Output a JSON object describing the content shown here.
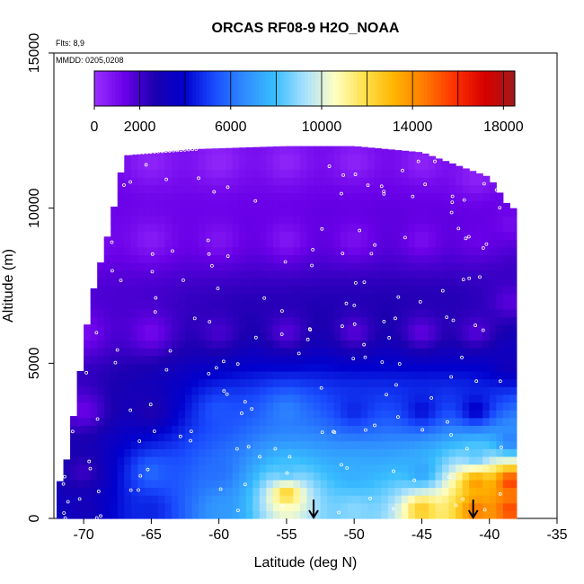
{
  "chart_data": {
    "type": "heatmap",
    "title": "ORCAS RF08-9 H2O_NOAA",
    "xlabel": "Latitude (deg N)",
    "ylabel": "Altitude (m)",
    "note_flights": "Flts: 8,9",
    "note_dates": "MMDD: 0205,0208",
    "xlim": [
      -72.2,
      -35
    ],
    "ylim": [
      0,
      15000
    ],
    "x_ticks": [
      -70,
      -65,
      -60,
      -55,
      -50,
      -45,
      -40,
      -35
    ],
    "y_ticks": [
      0,
      5000,
      10000,
      15000
    ],
    "colorbar": {
      "range": [
        0,
        18500
      ],
      "tick_values": [
        0,
        2000,
        6000,
        10000,
        14000,
        18000
      ],
      "colors": [
        "#9b30ff",
        "#6a00e8",
        "#1c00b0",
        "#0000cd",
        "#1a4cff",
        "#2f8cff",
        "#38bdff",
        "#a6e0ff",
        "#ffffc4",
        "#ffe14a",
        "#ffb300",
        "#ff7a00",
        "#ff3000",
        "#d60000",
        "#a31a1a"
      ]
    },
    "field": {
      "lat_range": [
        -72,
        -38
      ],
      "alt_range": [
        0,
        12000
      ],
      "top_edge_alt": [
        [
          -71.5,
          1200
        ],
        [
          -70.5,
          4000
        ],
        [
          -69.5,
          7000
        ],
        [
          -68,
          9500
        ],
        [
          -67,
          11700
        ],
        [
          -62,
          11900
        ],
        [
          -55,
          12000
        ],
        [
          -50,
          12000
        ],
        [
          -45,
          11800
        ],
        [
          -40,
          11000
        ],
        [
          -38.5,
          10000
        ]
      ],
      "anchors": [
        [
          -70,
          300,
          3000
        ],
        [
          -70,
          1500,
          2000
        ],
        [
          -70,
          3500,
          1200
        ],
        [
          -70,
          6000,
          900
        ],
        [
          -70,
          9000,
          500
        ],
        [
          -65,
          300,
          4500
        ],
        [
          -65,
          1500,
          6000
        ],
        [
          -65,
          3500,
          2500
        ],
        [
          -65,
          6000,
          1000
        ],
        [
          -65,
          9000,
          500
        ],
        [
          -65,
          11500,
          300
        ],
        [
          -60,
          300,
          7000
        ],
        [
          -60,
          1500,
          6000
        ],
        [
          -60,
          3500,
          5500
        ],
        [
          -60,
          6000,
          1800
        ],
        [
          -60,
          9000,
          700
        ],
        [
          -60,
          11500,
          200
        ],
        [
          -55,
          300,
          10500
        ],
        [
          -55,
          800,
          13500
        ],
        [
          -55,
          1500,
          8000
        ],
        [
          -55,
          3500,
          6500
        ],
        [
          -55,
          6000,
          1500
        ],
        [
          -55,
          9000,
          600
        ],
        [
          -55,
          11500,
          250
        ],
        [
          -50,
          300,
          9000
        ],
        [
          -50,
          1500,
          7500
        ],
        [
          -50,
          3500,
          4500
        ],
        [
          -50,
          6000,
          1500
        ],
        [
          -50,
          9000,
          800
        ],
        [
          -50,
          11500,
          300
        ],
        [
          -45,
          300,
          13000
        ],
        [
          -45,
          1500,
          7000
        ],
        [
          -45,
          3500,
          4000
        ],
        [
          -45,
          6000,
          1300
        ],
        [
          -45,
          9000,
          900
        ],
        [
          -45,
          11500,
          300
        ],
        [
          -41,
          300,
          15000
        ],
        [
          -41,
          1200,
          14500
        ],
        [
          -41,
          2000,
          8000
        ],
        [
          -41,
          3500,
          3500
        ],
        [
          -41,
          6000,
          1500
        ],
        [
          -41,
          9000,
          1200
        ],
        [
          -41,
          11000,
          300
        ],
        [
          -38.5,
          300,
          16000
        ],
        [
          -38.5,
          1200,
          16500
        ],
        [
          -38.5,
          2500,
          6000
        ],
        [
          -38.5,
          5000,
          3000
        ],
        [
          -38.5,
          7000,
          1500
        ],
        [
          -38.5,
          9500,
          1000
        ]
      ]
    },
    "arrows_lat": [
      -53,
      -41.2
    ]
  }
}
